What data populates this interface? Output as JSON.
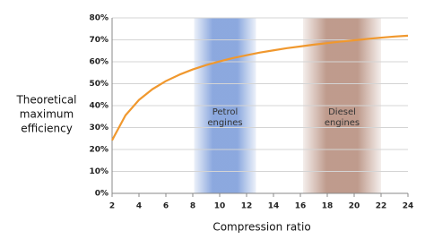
{
  "chart_data": {
    "type": "line",
    "y_label_lines": [
      "Theoretical",
      "maximum",
      "efficiency"
    ],
    "x_label": "Compression ratio",
    "x": [
      2,
      3,
      4,
      5,
      6,
      7,
      8,
      9,
      10,
      11,
      12,
      13,
      14,
      15,
      16,
      17,
      18,
      19,
      20,
      21,
      22,
      23,
      24
    ],
    "series": [
      {
        "color": "#f0982e",
        "values": [
          24.2,
          35.6,
          42.6,
          47.5,
          51.2,
          54.1,
          56.5,
          58.5,
          60.2,
          61.7,
          63.0,
          64.2,
          65.2,
          66.2,
          67.0,
          67.8,
          68.5,
          69.2,
          69.8,
          70.4,
          71.0,
          71.5,
          71.9
        ]
      }
    ],
    "xlim": [
      2,
      24
    ],
    "xticks": [
      2,
      4,
      6,
      8,
      10,
      12,
      14,
      16,
      18,
      20,
      22,
      24
    ],
    "ylim": [
      0,
      80
    ],
    "yticks": [
      {
        "value": 0,
        "label": "0%"
      },
      {
        "value": 10,
        "label": "10%"
      },
      {
        "value": 20,
        "label": "20%"
      },
      {
        "value": 30,
        "label": "30%"
      },
      {
        "value": 40,
        "label": "40%"
      },
      {
        "value": 50,
        "label": "50%"
      },
      {
        "value": 60,
        "label": "60%"
      },
      {
        "value": 70,
        "label": "70%"
      },
      {
        "value": 80,
        "label": "80%"
      }
    ],
    "grid": true,
    "bands": [
      {
        "label_lines": [
          "Petrol",
          "engines"
        ],
        "x": [
          8.1,
          12.7
        ],
        "color": "#7f9fdb"
      },
      {
        "label_lines": [
          "Diesel",
          "engines"
        ],
        "x": [
          16.2,
          22
        ],
        "color": "#b89080"
      }
    ]
  }
}
